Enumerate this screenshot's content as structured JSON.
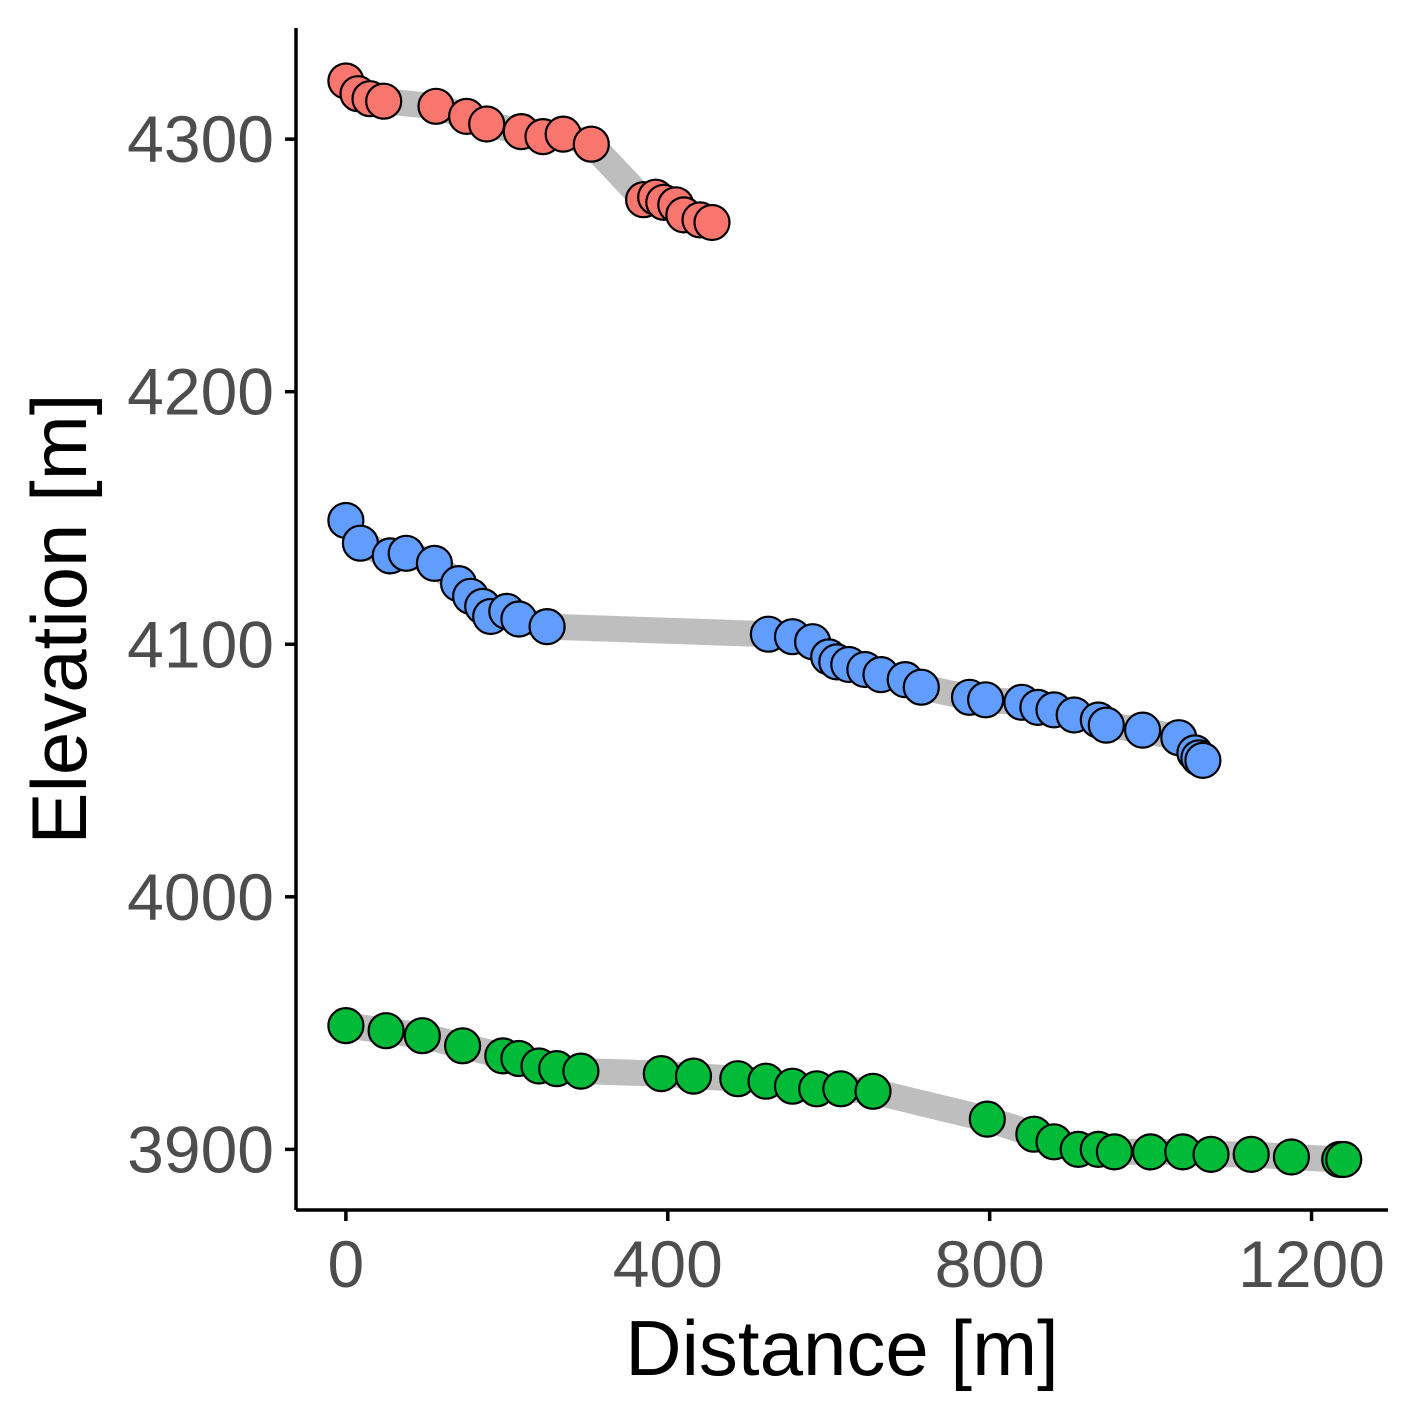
{
  "chart_data": {
    "type": "scatter",
    "title": "",
    "xlabel": "Distance [m]",
    "ylabel": "Elevation [m]",
    "xlim": [
      -62,
      1295
    ],
    "ylim": [
      3876,
      4344
    ],
    "x_ticks": [
      0,
      400,
      800,
      1200
    ],
    "y_ticks": [
      3900,
      4000,
      4100,
      4200,
      4300
    ],
    "grid": false,
    "legend": "none",
    "track_color": "#bebebe",
    "series": [
      {
        "color": "#f8766d",
        "points": [
          {
            "x": 0,
            "y": 4323
          },
          {
            "x": 15,
            "y": 4318
          },
          {
            "x": 30,
            "y": 4316
          },
          {
            "x": 47,
            "y": 4315
          },
          {
            "x": 112,
            "y": 4313
          },
          {
            "x": 150,
            "y": 4309
          },
          {
            "x": 175,
            "y": 4306
          },
          {
            "x": 218,
            "y": 4303
          },
          {
            "x": 245,
            "y": 4301
          },
          {
            "x": 270,
            "y": 4302
          },
          {
            "x": 305,
            "y": 4298
          },
          {
            "x": 370,
            "y": 4276
          },
          {
            "x": 385,
            "y": 4277
          },
          {
            "x": 395,
            "y": 4275
          },
          {
            "x": 410,
            "y": 4274
          },
          {
            "x": 420,
            "y": 4270
          },
          {
            "x": 440,
            "y": 4268
          },
          {
            "x": 455,
            "y": 4267
          }
        ]
      },
      {
        "color": "#619cff",
        "points": [
          {
            "x": 0,
            "y": 4149
          },
          {
            "x": 18,
            "y": 4140
          },
          {
            "x": 55,
            "y": 4135
          },
          {
            "x": 75,
            "y": 4136
          },
          {
            "x": 110,
            "y": 4132
          },
          {
            "x": 140,
            "y": 4124
          },
          {
            "x": 155,
            "y": 4119
          },
          {
            "x": 170,
            "y": 4115
          },
          {
            "x": 180,
            "y": 4111
          },
          {
            "x": 200,
            "y": 4113
          },
          {
            "x": 215,
            "y": 4110
          },
          {
            "x": 250,
            "y": 4107
          },
          {
            "x": 525,
            "y": 4104
          },
          {
            "x": 555,
            "y": 4103
          },
          {
            "x": 580,
            "y": 4101
          },
          {
            "x": 600,
            "y": 4095
          },
          {
            "x": 610,
            "y": 4093
          },
          {
            "x": 625,
            "y": 4092
          },
          {
            "x": 645,
            "y": 4090
          },
          {
            "x": 665,
            "y": 4088
          },
          {
            "x": 695,
            "y": 4086
          },
          {
            "x": 715,
            "y": 4083
          },
          {
            "x": 775,
            "y": 4079
          },
          {
            "x": 795,
            "y": 4078
          },
          {
            "x": 840,
            "y": 4077
          },
          {
            "x": 860,
            "y": 4075
          },
          {
            "x": 880,
            "y": 4074
          },
          {
            "x": 905,
            "y": 4072
          },
          {
            "x": 935,
            "y": 4070
          },
          {
            "x": 945,
            "y": 4068
          },
          {
            "x": 990,
            "y": 4066
          },
          {
            "x": 1035,
            "y": 4063
          },
          {
            "x": 1055,
            "y": 4057
          },
          {
            "x": 1060,
            "y": 4055
          },
          {
            "x": 1065,
            "y": 4054
          }
        ]
      },
      {
        "color": "#00ba38",
        "points": [
          {
            "x": 0,
            "y": 3949
          },
          {
            "x": 50,
            "y": 3947
          },
          {
            "x": 95,
            "y": 3945
          },
          {
            "x": 145,
            "y": 3941
          },
          {
            "x": 195,
            "y": 3937
          },
          {
            "x": 215,
            "y": 3936
          },
          {
            "x": 240,
            "y": 3933
          },
          {
            "x": 262,
            "y": 3932
          },
          {
            "x": 292,
            "y": 3931
          },
          {
            "x": 392,
            "y": 3930
          },
          {
            "x": 432,
            "y": 3929
          },
          {
            "x": 487,
            "y": 3928
          },
          {
            "x": 522,
            "y": 3927
          },
          {
            "x": 555,
            "y": 3925
          },
          {
            "x": 585,
            "y": 3924
          },
          {
            "x": 615,
            "y": 3924
          },
          {
            "x": 655,
            "y": 3923
          },
          {
            "x": 797,
            "y": 3912
          },
          {
            "x": 855,
            "y": 3906
          },
          {
            "x": 880,
            "y": 3903
          },
          {
            "x": 910,
            "y": 3900
          },
          {
            "x": 935,
            "y": 3900
          },
          {
            "x": 955,
            "y": 3899
          },
          {
            "x": 1000,
            "y": 3899
          },
          {
            "x": 1040,
            "y": 3899
          },
          {
            "x": 1075,
            "y": 3898
          },
          {
            "x": 1125,
            "y": 3898
          },
          {
            "x": 1175,
            "y": 3897
          },
          {
            "x": 1235,
            "y": 3896
          },
          {
            "x": 1240,
            "y": 3896
          }
        ]
      }
    ]
  }
}
